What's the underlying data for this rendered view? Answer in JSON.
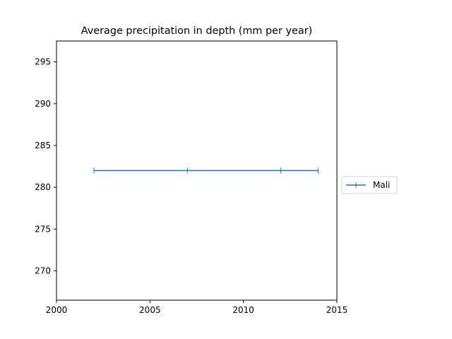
{
  "chart_data": {
    "type": "line",
    "title": "Average precipitation in depth (mm per year)",
    "xlabel": "",
    "ylabel": "",
    "xlim": [
      2000,
      2015
    ],
    "ylim": [
      266.5,
      297.5
    ],
    "x_ticks": [
      2000,
      2005,
      2010,
      2015
    ],
    "y_ticks": [
      270,
      275,
      280,
      285,
      290,
      295
    ],
    "grid": false,
    "legend_position": "center-right-outside",
    "series": [
      {
        "name": "Mali",
        "color": "#1f77b4",
        "marker": "|",
        "x": [
          2002,
          2007,
          2012,
          2014
        ],
        "y": [
          282,
          282,
          282,
          282
        ]
      }
    ]
  }
}
